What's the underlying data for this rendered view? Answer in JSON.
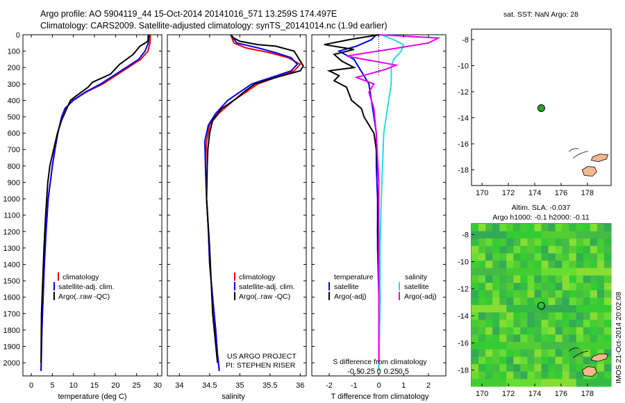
{
  "header": {
    "line1": "Argo profile: AO 5904119_44 15-Oct-2014 20141016_571 13.259S 174.497E",
    "line2": "Climatology: CARS2009. Satellite-adjusted climatology: synTS_20141014.nc (1.9d earlier)"
  },
  "colors": {
    "climatology": "#ee0000",
    "satellite": "#0000ee",
    "argo": "#000000",
    "sal_satellite": "#22dddd",
    "sal_argo": "#ee00ee",
    "land": "#f4b890",
    "float_marker": "#22aa22"
  },
  "depth_axis": {
    "range": [
      0,
      2080
    ],
    "ticks": [
      0,
      100,
      200,
      300,
      400,
      500,
      600,
      700,
      800,
      900,
      1000,
      1100,
      1200,
      1300,
      1400,
      1500,
      1600,
      1700,
      1800,
      1900,
      2000
    ]
  },
  "panel_temperature": {
    "xlabel": "temperature (deg C)",
    "xticks": [
      0,
      5,
      10,
      15,
      20,
      25,
      30
    ],
    "legend": [
      "climatology",
      "satellite-adj. clim.",
      "Argo(..raw -QC)"
    ]
  },
  "panel_salinity": {
    "xlabel": "salinity",
    "xticks": [
      "34",
      "34.5",
      "35",
      "35.5",
      "36"
    ],
    "legend": [
      "climatology",
      "satellite-adj. clim.",
      "Argo(..raw -QC)"
    ],
    "credit1": "US ARGO PROJECT",
    "credit2": "PI: STEPHEN RISER"
  },
  "panel_difference": {
    "xlabel": "T difference from climatology",
    "top_label": "S difference from climatology",
    "t_ticks": [
      "-2",
      "-1",
      "0",
      "1",
      "2"
    ],
    "s_ticks": [
      "-0.5",
      "-0.25",
      "0",
      "0.25",
      "0.5"
    ],
    "legend_temp_title": "temperature",
    "legend_sal_title": "salinity",
    "legend_items": [
      "satellite",
      "Argo(-adj)",
      "satellite",
      "Argo(-adj)"
    ]
  },
  "map_sst": {
    "title": "sat. SST: NaN Argo: 28",
    "xticks": [
      "170",
      "172",
      "174",
      "176",
      "178"
    ],
    "yticks": [
      "-8",
      "-10",
      "-12",
      "-14",
      "-16",
      "-18"
    ]
  },
  "map_sla": {
    "title1": "Altim. SLA: -0.037",
    "title2": "Argo h1000: -0.1 h2000: -0.11",
    "xticks": [
      "170",
      "172",
      "174",
      "176",
      "178"
    ],
    "yticks": [
      "-8",
      "-10",
      "-12",
      "-14",
      "-16",
      "-18"
    ]
  },
  "side_label": "IMOS 21-Oct-2014 20:02:08",
  "chart_data": [
    {
      "type": "line",
      "name": "temperature profile",
      "xlabel": "temperature (deg C)",
      "ylabel": "",
      "xlim": [
        -2,
        31
      ],
      "ylim": [
        2080,
        0
      ],
      "series": [
        {
          "name": "climatology",
          "x": [
            28.3,
            28.2,
            27.7,
            26,
            23,
            20,
            17,
            13,
            10,
            8,
            7.2,
            6.3,
            5.6,
            5.0,
            4.5,
            4.0,
            3.5,
            3.1,
            2.8,
            2.5,
            2.3
          ],
          "y": [
            0,
            50,
            100,
            150,
            200,
            250,
            300,
            350,
            400,
            450,
            500,
            600,
            700,
            800,
            900,
            1000,
            1200,
            1400,
            1600,
            1800,
            2050
          ]
        },
        {
          "name": "satellite-adj. clim.",
          "x": [
            28.0,
            27.8,
            27.0,
            25.5,
            22.5,
            19.5,
            16.5,
            12.8,
            9.9,
            8,
            7.2,
            6.3,
            5.6,
            5.0,
            4.5,
            4.0,
            3.5,
            3.1,
            2.8,
            2.5,
            2.3
          ],
          "y": [
            0,
            50,
            100,
            150,
            200,
            250,
            300,
            350,
            400,
            450,
            500,
            600,
            700,
            800,
            900,
            1000,
            1200,
            1400,
            1600,
            1800,
            2050
          ]
        },
        {
          "name": "Argo(..raw -QC)",
          "x": [
            27.8,
            27.7,
            25.8,
            24.2,
            21,
            18.8,
            14.5,
            13.5,
            10.8,
            9.3,
            8.6,
            7.2,
            6.2,
            5.3,
            4.4,
            3.9,
            3.4,
            3.0,
            2.7,
            2.4,
            2.3
          ],
          "y": [
            0,
            40,
            70,
            120,
            180,
            240,
            290,
            320,
            370,
            400,
            440,
            520,
            600,
            700,
            800,
            900,
            1100,
            1300,
            1500,
            1700,
            2000
          ]
        }
      ]
    },
    {
      "type": "line",
      "name": "salinity profile",
      "xlabel": "salinity",
      "ylabel": "",
      "xlim": [
        33.8,
        36.1
      ],
      "ylim": [
        2080,
        0
      ],
      "series": [
        {
          "name": "climatology",
          "x": [
            34.85,
            34.9,
            35.1,
            35.5,
            35.8,
            36.0,
            35.9,
            35.3,
            34.9,
            34.65,
            34.5,
            34.45,
            34.43,
            34.45,
            34.48,
            34.5,
            34.55,
            34.6,
            34.63,
            34.66
          ],
          "y": [
            0,
            50,
            80,
            110,
            140,
            180,
            220,
            300,
            400,
            480,
            550,
            650,
            800,
            1000,
            1200,
            1400,
            1600,
            1800,
            1950,
            2050
          ]
        },
        {
          "name": "satellite-adj. clim.",
          "x": [
            34.85,
            34.95,
            35.3,
            35.6,
            35.85,
            35.95,
            35.85,
            35.2,
            34.8,
            34.6,
            34.48,
            34.42,
            34.43,
            34.45,
            34.48,
            34.5,
            34.55,
            34.6,
            34.63,
            34.66
          ],
          "y": [
            0,
            50,
            80,
            110,
            140,
            180,
            220,
            300,
            400,
            480,
            550,
            650,
            800,
            1000,
            1200,
            1400,
            1600,
            1800,
            1950,
            2050
          ]
        },
        {
          "name": "Argo(..raw -QC)",
          "x": [
            34.85,
            34.9,
            35.0,
            35.3,
            35.6,
            35.9,
            36.05,
            36.0,
            35.6,
            35.25,
            35.1,
            34.9,
            34.7,
            34.55,
            34.5,
            34.47,
            34.46,
            34.45,
            34.5,
            34.55,
            34.63
          ],
          "y": [
            0,
            20,
            40,
            60,
            70,
            100,
            190,
            220,
            260,
            300,
            340,
            400,
            450,
            520,
            600,
            700,
            800,
            1000,
            1300,
            1700,
            2000
          ]
        }
      ]
    },
    {
      "type": "line",
      "name": "difference from climatology",
      "xlabel": "T difference from climatology",
      "ylabel": "",
      "xlim": [
        -2.7,
        2.7
      ],
      "ylim": [
        2080,
        0
      ],
      "series": [
        {
          "name": "temperature satellite",
          "x": [
            -0.1,
            -0.3,
            -0.9,
            -1.6,
            -1.0,
            -0.8,
            -0.6,
            -0.4,
            -0.3,
            -0.2,
            -0.1,
            -0.1,
            -0.05,
            -0.05,
            0,
            0
          ],
          "y": [
            0,
            30,
            70,
            100,
            150,
            200,
            250,
            300,
            400,
            500,
            600,
            800,
            1000,
            1300,
            1600,
            2050
          ]
        },
        {
          "name": "temperature Argo(-adj)",
          "x": [
            0,
            -1.2,
            -2.2,
            -1.0,
            -1.8,
            -1.5,
            -1.0,
            -2.0,
            -1.6,
            -1.8,
            -1.3,
            -1.1,
            -0.7,
            -0.6,
            -0.2,
            -0.1,
            0,
            -0.05,
            0.05,
            0
          ],
          "y": [
            0,
            30,
            60,
            90,
            120,
            160,
            200,
            220,
            250,
            280,
            320,
            400,
            450,
            500,
            600,
            700,
            900,
            1200,
            1600,
            2000
          ]
        },
        {
          "name": "salinity satellite",
          "x": [
            0.1,
            0.6,
            1.0,
            0.9,
            0.6,
            0.5,
            0.5,
            0.4,
            0.3,
            0.2,
            0.15,
            0.1,
            0.05,
            0.05,
            0
          ],
          "y": [
            0,
            30,
            60,
            100,
            150,
            200,
            300,
            400,
            500,
            600,
            800,
            1000,
            1300,
            1600,
            2050
          ]
        },
        {
          "name": "salinity Argo(-adj)",
          "x": [
            0,
            2.4,
            2.0,
            0.8,
            -1.3,
            -0.6,
            0.7,
            0.3,
            -0.9,
            -0.2,
            -0.4,
            -0.2,
            -0.1,
            0,
            0,
            0
          ],
          "y": [
            0,
            20,
            50,
            80,
            130,
            150,
            185,
            210,
            260,
            300,
            350,
            450,
            600,
            900,
            1400,
            2000
          ]
        }
      ]
    }
  ]
}
